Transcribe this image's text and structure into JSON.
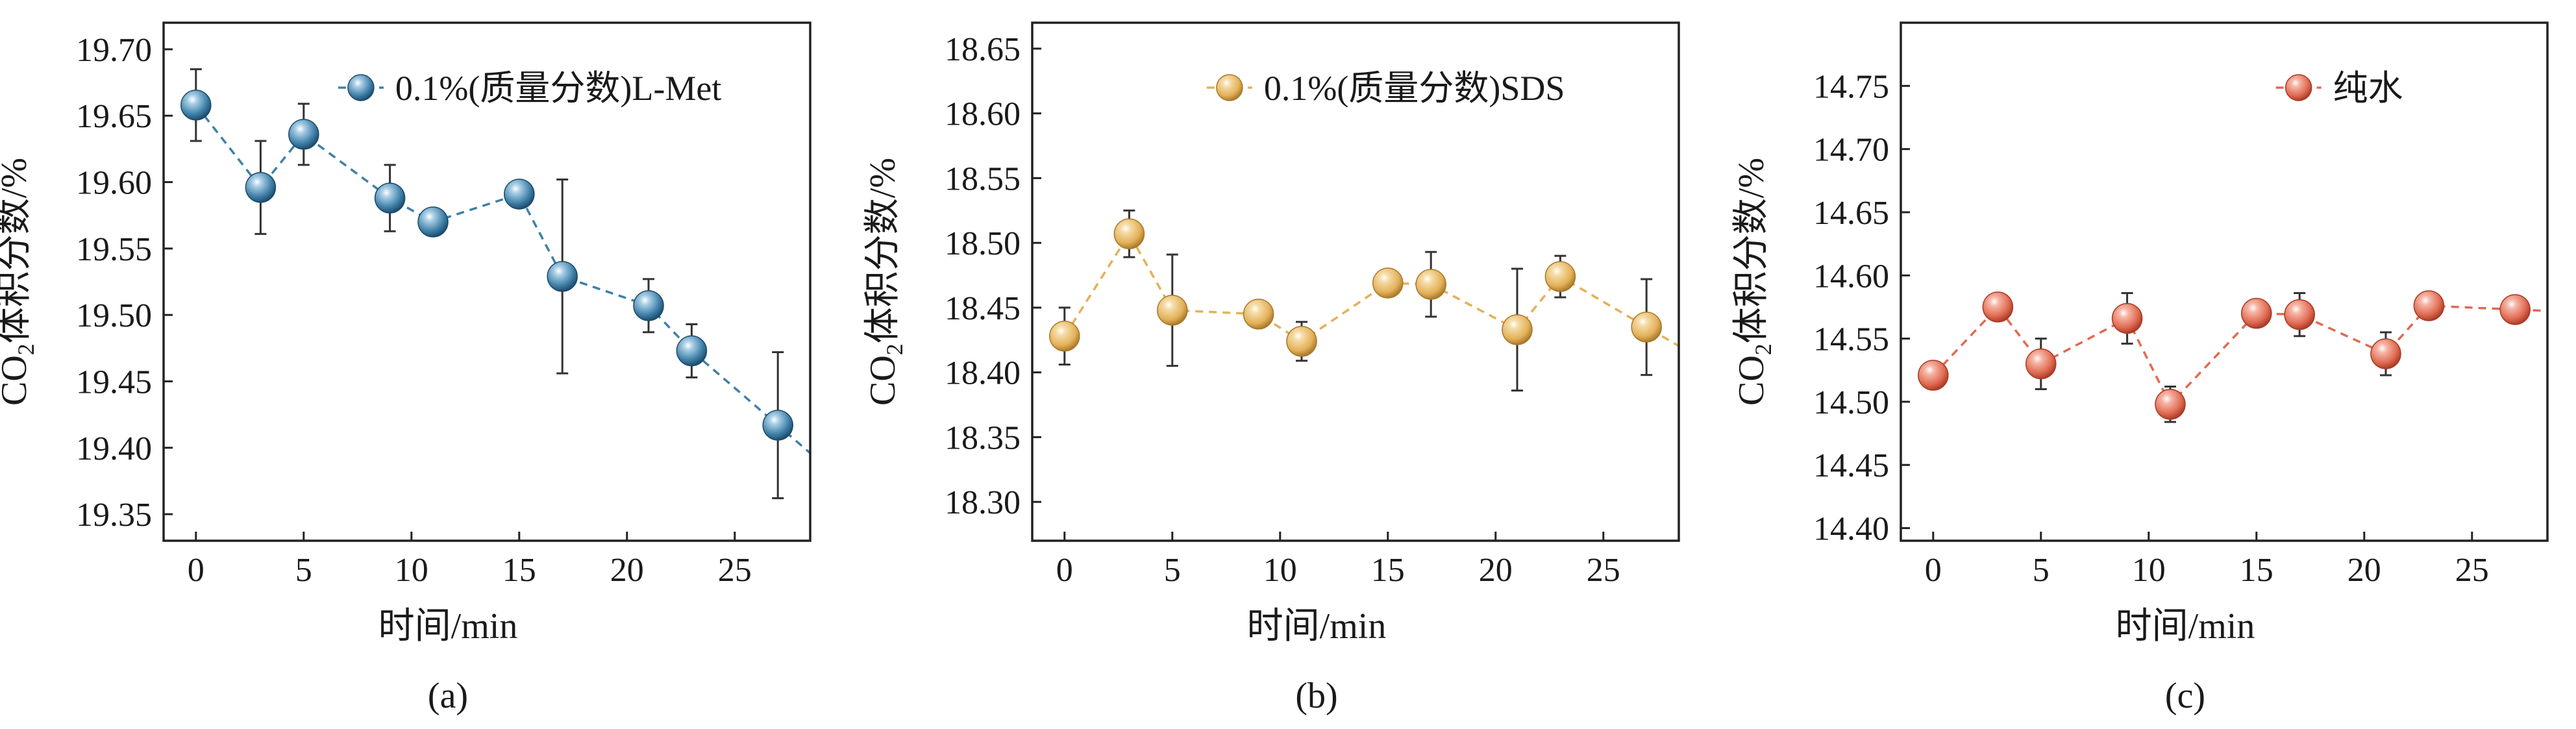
{
  "chart_data": [
    {
      "type": "scatter",
      "panel_label": "(a)",
      "xlabel": "时间/min",
      "ylabel": {
        "prefix": "CO",
        "sub": "2",
        "suffix": "体积分数/%"
      },
      "xlim": [
        -1.5,
        28.5
      ],
      "ylim": [
        19.33,
        19.72
      ],
      "xticks": [
        0,
        5,
        10,
        15,
        20,
        25
      ],
      "yticks": [
        19.35,
        19.4,
        19.45,
        19.5,
        19.55,
        19.6,
        19.65,
        19.7
      ],
      "tick_decimals": 2,
      "legend_position": "top-right",
      "colors": {
        "fill": "#3f80a8",
        "light": "#a9cfe6",
        "dark": "#1c4a6a"
      },
      "series": [
        {
          "name": "0.1%(质量分数)L-Met",
          "x": [
            0,
            3,
            5,
            9,
            11,
            15,
            17,
            21,
            23,
            27
          ],
          "y": [
            19.658,
            19.596,
            19.636,
            19.588,
            19.57,
            19.591,
            19.529,
            19.507,
            19.473,
            19.417
          ],
          "err": [
            0.027,
            0.035,
            0.023,
            0.025,
            0.008,
            0.007,
            0.073,
            0.02,
            0.02,
            0.055
          ]
        }
      ]
    },
    {
      "type": "scatter",
      "panel_label": "(b)",
      "xlabel": "时间/min",
      "ylabel": {
        "prefix": "CO",
        "sub": "2",
        "suffix": "体积分数/%"
      },
      "xlim": [
        -1.5,
        28.5
      ],
      "ylim": [
        18.27,
        18.67
      ],
      "xticks": [
        0,
        5,
        10,
        15,
        20,
        25
      ],
      "yticks": [
        18.3,
        18.35,
        18.4,
        18.45,
        18.5,
        18.55,
        18.6,
        18.65
      ],
      "tick_decimals": 2,
      "legend_position": "top-right",
      "colors": {
        "fill": "#e3b159",
        "light": "#f5dca6",
        "dark": "#a8782a"
      },
      "series": [
        {
          "name": "0.1%(质量分数)SDS",
          "x": [
            0,
            3,
            5,
            9,
            11,
            15,
            17,
            21,
            23,
            27
          ],
          "y": [
            18.428,
            18.507,
            18.448,
            18.445,
            18.424,
            18.469,
            18.468,
            18.433,
            18.474,
            18.435
          ],
          "err": [
            0.022,
            0.018,
            0.043,
            0.006,
            0.015,
            0.008,
            0.025,
            0.047,
            0.016,
            0.037
          ]
        }
      ]
    },
    {
      "type": "scatter",
      "panel_label": "(c)",
      "xlabel": "时间/min",
      "ylabel": {
        "prefix": "CO",
        "sub": "2",
        "suffix": "体积分数/%"
      },
      "xlim": [
        -1.5,
        28.5
      ],
      "ylim": [
        14.39,
        14.8
      ],
      "xticks": [
        0,
        5,
        10,
        15,
        20,
        25
      ],
      "yticks": [
        14.4,
        14.45,
        14.5,
        14.55,
        14.6,
        14.65,
        14.7,
        14.75
      ],
      "tick_decimals": 2,
      "legend_position": "top-right",
      "colors": {
        "fill": "#e06a52",
        "light": "#f6b6a6",
        "dark": "#a83a25"
      },
      "series": [
        {
          "name": "纯水",
          "x": [
            0,
            3,
            5,
            9,
            11,
            15,
            17,
            21,
            23,
            27
          ],
          "y": [
            14.521,
            14.575,
            14.53,
            14.566,
            14.498,
            14.57,
            14.569,
            14.538,
            14.576,
            14.573
          ],
          "err": [
            0.004,
            0.01,
            0.02,
            0.02,
            0.014,
            0.006,
            0.017,
            0.017,
            0.01,
            0.01
          ]
        }
      ]
    }
  ]
}
